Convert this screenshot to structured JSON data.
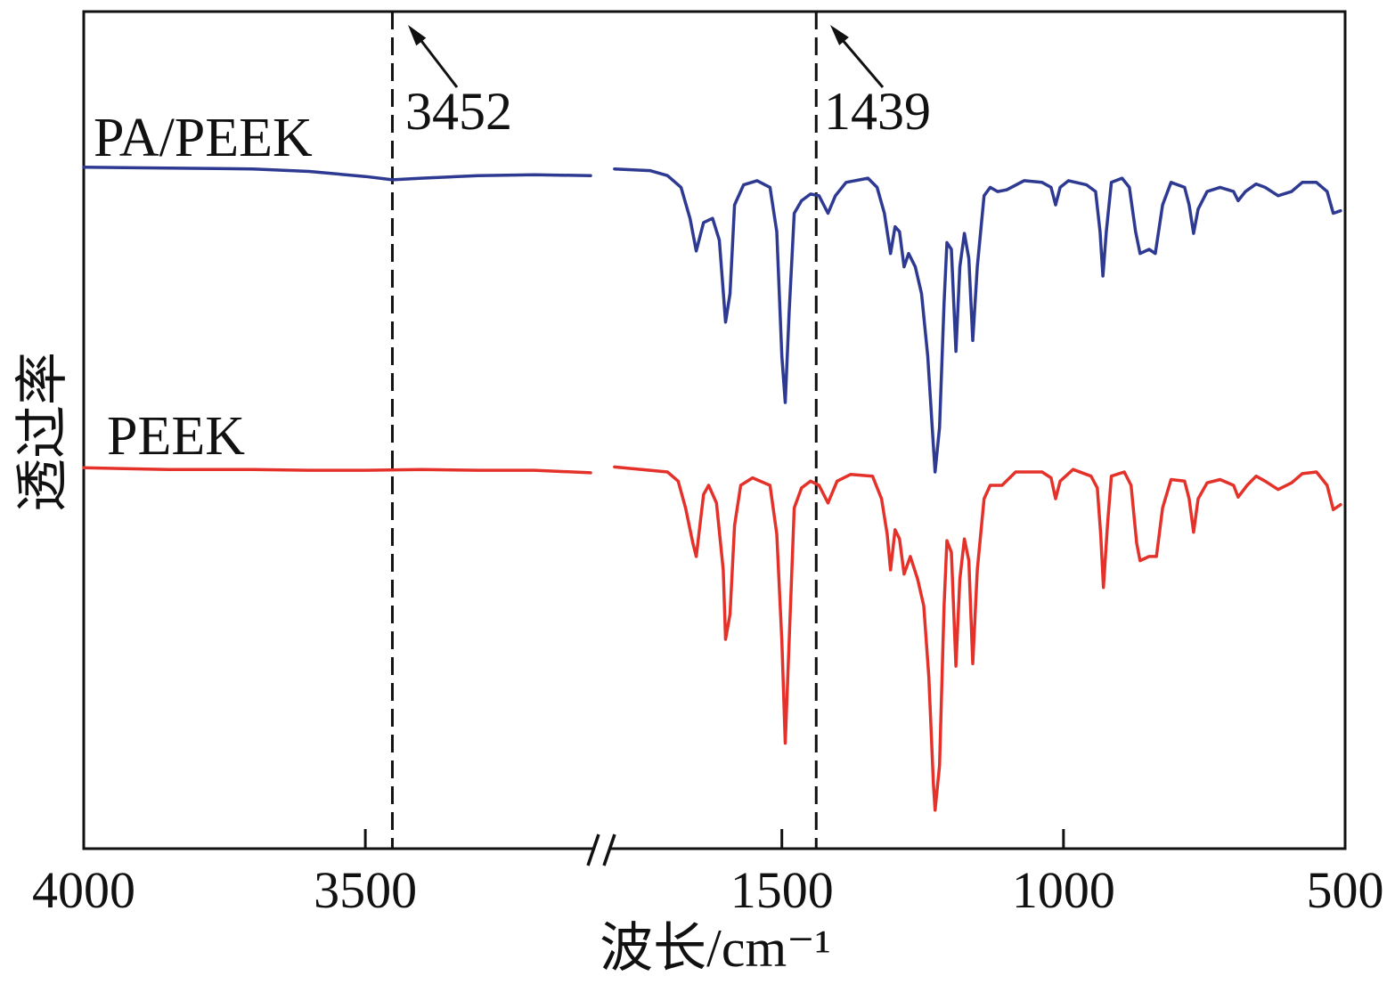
{
  "chart_data": {
    "type": "line",
    "title": "",
    "xlabel": "波长/cm⁻¹",
    "ylabel": "透过率",
    "x_axis": {
      "reversed": true,
      "broken": true,
      "segments": [
        {
          "range": [
            4000,
            3100
          ],
          "ticks": [
            4000,
            3500
          ]
        },
        {
          "range": [
            1800,
            500
          ],
          "ticks": [
            1500,
            1000,
            500
          ]
        }
      ]
    },
    "ylim": [
      0,
      100
    ],
    "grid": false,
    "legend": "left",
    "series": [
      {
        "name": "PA/PEEK",
        "color": "#2e3a92",
        "segments": [
          {
            "x": [
              4000,
              3850,
              3700,
              3600,
              3500,
              3452,
              3400,
              3300,
              3200,
              3100
            ],
            "y": [
              81.4,
              81.3,
              81.2,
              80.9,
              80.3,
              79.9,
              80.1,
              80.4,
              80.5,
              80.4
            ]
          },
          {
            "x": [
              1797,
              1734,
              1703,
              1679,
              1663,
              1652,
              1639,
              1623,
              1611,
              1600,
              1592,
              1584,
              1568,
              1544,
              1521,
              1509,
              1500,
              1494,
              1487,
              1478,
              1465,
              1449,
              1434,
              1418,
              1405,
              1386,
              1347,
              1331,
              1318,
              1307,
              1299,
              1291,
              1283,
              1275,
              1263,
              1252,
              1241,
              1233,
              1228,
              1220,
              1212,
              1207,
              1199,
              1191,
              1184,
              1176,
              1168,
              1161,
              1153,
              1141,
              1130,
              1117,
              1101,
              1070,
              1038,
              1022,
              1014,
              1006,
              991,
              959,
              943,
              935,
              930,
              924,
              915,
              896,
              883,
              872,
              864,
              848,
              837,
              824,
              809,
              785,
              777,
              769,
              761,
              745,
              722,
              698,
              690,
              677,
              658,
              642,
              619,
              595,
              576,
              551,
              532,
              521,
              508
            ],
            "y": [
              81.2,
              81.0,
              80.4,
              79.0,
              75.3,
              71.4,
              74.8,
              75.3,
              72.7,
              62.9,
              66.3,
              76.9,
              79.3,
              79.8,
              79.0,
              73.7,
              58.8,
              53.3,
              64.1,
              75.9,
              77.4,
              78.2,
              78.0,
              75.9,
              78.0,
              79.6,
              80.1,
              79.0,
              75.9,
              71.1,
              74.3,
              73.7,
              69.5,
              71.1,
              69.5,
              66.3,
              58.8,
              50.3,
              45.0,
              50.3,
              65.2,
              72.4,
              71.6,
              59.4,
              69.5,
              73.5,
              70.5,
              60.7,
              69.5,
              78.0,
              79.0,
              78.5,
              78.7,
              79.8,
              79.6,
              79.0,
              76.9,
              79.0,
              79.8,
              79.3,
              78.5,
              73.7,
              68.4,
              73.7,
              79.6,
              80.1,
              79.0,
              73.7,
              71.1,
              71.6,
              71.1,
              76.9,
              79.6,
              79.0,
              76.9,
              73.5,
              76.4,
              78.5,
              79.0,
              78.5,
              77.4,
              78.5,
              79.4,
              79.0,
              78.0,
              78.5,
              79.6,
              79.6,
              78.5,
              75.9,
              76.2
            ]
          }
        ]
      },
      {
        "name": "PEEK",
        "color": "#e4322b",
        "segments": [
          {
            "x": [
              4000,
              3850,
              3700,
              3600,
              3500,
              3400,
              3300,
              3200,
              3100
            ],
            "y": [
              45.5,
              45.3,
              45.3,
              45.2,
              45.2,
              45.3,
              45.2,
              45.2,
              44.9
            ]
          },
          {
            "x": [
              1797,
              1703,
              1684,
              1671,
              1658,
              1652,
              1639,
              1630,
              1616,
              1604,
              1600,
              1592,
              1584,
              1573,
              1552,
              1521,
              1509,
              1500,
              1494,
              1487,
              1478,
              1465,
              1449,
              1434,
              1418,
              1402,
              1378,
              1339,
              1323,
              1313,
              1307,
              1299,
              1291,
              1283,
              1272,
              1259,
              1248,
              1239,
              1231,
              1228,
              1220,
              1212,
              1207,
              1199,
              1191,
              1184,
              1176,
              1168,
              1161,
              1153,
              1141,
              1130,
              1109,
              1085,
              1038,
              1022,
              1014,
              1006,
              983,
              951,
              940,
              934,
              929,
              922,
              915,
              892,
              880,
              870,
              864,
              848,
              835,
              824,
              809,
              785,
              777,
              769,
              761,
              745,
              722,
              698,
              690,
              674,
              658,
              642,
              619,
              595,
              576,
              551,
              532,
              521,
              508
            ],
            "y": [
              45.6,
              45.0,
              43.9,
              40.7,
              36.5,
              34.9,
              42.3,
              43.4,
              41.3,
              33.3,
              25.0,
              28.0,
              38.6,
              43.4,
              44.3,
              43.4,
              37.6,
              24.8,
              12.6,
              24.8,
              40.7,
              43.1,
              43.9,
              43.4,
              41.3,
              43.9,
              44.7,
              44.5,
              41.8,
              37.6,
              33.3,
              38.1,
              37.0,
              32.8,
              34.9,
              32.2,
              29.0,
              20.5,
              7.8,
              4.6,
              9.9,
              29.0,
              36.8,
              35.4,
              21.8,
              32.2,
              37.0,
              34.4,
              22.1,
              33.3,
              41.8,
              43.4,
              43.4,
              45.0,
              45.0,
              44.3,
              41.8,
              43.9,
              45.3,
              44.5,
              43.1,
              37.6,
              31.2,
              38.6,
              44.5,
              45.0,
              43.4,
              36.5,
              34.4,
              34.9,
              34.9,
              40.7,
              44.1,
              43.9,
              41.8,
              37.8,
              41.8,
              43.7,
              44.1,
              43.4,
              42.0,
              43.4,
              44.5,
              43.9,
              42.9,
              43.7,
              44.8,
              45.0,
              43.4,
              40.5,
              41.1
            ]
          }
        ]
      }
    ],
    "annotations": [
      {
        "x": 3452,
        "label": "3452"
      },
      {
        "x": 1439,
        "label": "1439"
      }
    ]
  }
}
